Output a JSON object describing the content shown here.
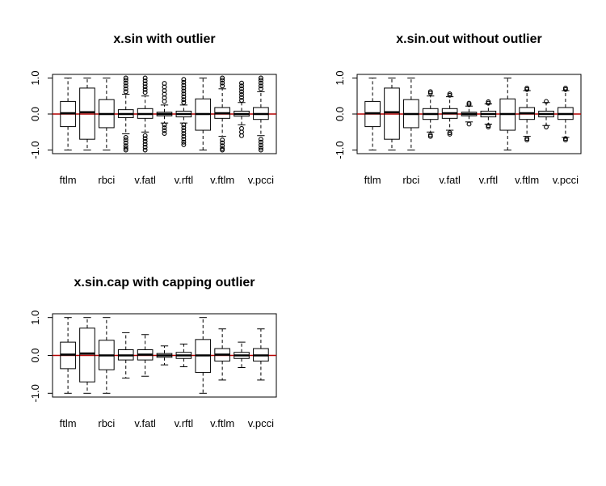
{
  "colors": {
    "background": "#ffffff",
    "axis": "#000000",
    "zero_line": "#b30000",
    "median": "#000000"
  },
  "chart_data": [
    {
      "type": "boxplot",
      "title": "x.sin with outlier",
      "ylim": [
        -1.1,
        1.1
      ],
      "yticks": [
        "-1.0",
        "0.0",
        "1.0"
      ],
      "ytick_values": [
        -1.0,
        0.0,
        1.0
      ],
      "xtick_labels": [
        "ftlm",
        "rbci",
        "v.fatl",
        "v.rftl",
        "v.ftlm",
        "v.pcci"
      ],
      "xtick_positions": [
        1,
        3,
        5,
        7,
        9,
        11
      ],
      "reference_line": 0,
      "boxes": [
        {
          "whisker_low": -1.0,
          "q1": -0.35,
          "median": 0.02,
          "q3": 0.35,
          "whisker_high": 1.0,
          "outliers": []
        },
        {
          "whisker_low": -1.0,
          "q1": -0.7,
          "median": 0.05,
          "q3": 0.72,
          "whisker_high": 1.0,
          "outliers": []
        },
        {
          "whisker_low": -1.0,
          "q1": -0.38,
          "median": 0.0,
          "q3": 0.4,
          "whisker_high": 1.0,
          "outliers": []
        },
        {
          "whisker_low": -0.55,
          "q1": -0.1,
          "median": 0.0,
          "q3": 0.12,
          "whisker_high": 0.55,
          "outliers": [
            -0.65,
            -0.72,
            -0.8,
            -0.88,
            -0.95,
            -1.0,
            0.62,
            0.7,
            0.78,
            0.86,
            0.94,
            1.0
          ]
        },
        {
          "whisker_low": -0.5,
          "q1": -0.12,
          "median": 0.0,
          "q3": 0.15,
          "whisker_high": 0.5,
          "outliers": [
            -0.6,
            -0.68,
            -0.76,
            -0.84,
            -0.92,
            -1.0,
            0.6,
            0.68,
            0.76,
            0.84,
            0.92,
            1.0
          ]
        },
        {
          "whisker_low": -0.25,
          "q1": -0.05,
          "median": 0.0,
          "q3": 0.05,
          "whisker_high": 0.25,
          "outliers": [
            -0.3,
            -0.38,
            -0.46,
            -0.54,
            0.35,
            0.45,
            0.55,
            0.65,
            0.75,
            0.85
          ]
        },
        {
          "whisker_low": -0.25,
          "q1": -0.08,
          "median": 0.0,
          "q3": 0.08,
          "whisker_high": 0.25,
          "outliers": [
            -0.3,
            -0.38,
            -0.46,
            -0.54,
            -0.62,
            -0.7,
            -0.78,
            -0.85,
            0.32,
            0.4,
            0.48,
            0.56,
            0.64,
            0.72,
            0.8,
            0.88,
            0.96
          ]
        },
        {
          "whisker_low": -1.0,
          "q1": -0.45,
          "median": 0.0,
          "q3": 0.42,
          "whisker_high": 1.0,
          "outliers": []
        },
        {
          "whisker_low": -0.62,
          "q1": -0.12,
          "median": 0.02,
          "q3": 0.18,
          "whisker_high": 0.7,
          "outliers": [
            -0.72,
            -0.8,
            -0.88,
            -0.96,
            -1.0,
            0.78,
            0.86,
            0.94,
            1.0
          ]
        },
        {
          "whisker_low": -0.3,
          "q1": -0.06,
          "median": 0.0,
          "q3": 0.08,
          "whisker_high": 0.32,
          "outliers": [
            -0.4,
            -0.5,
            -0.6,
            0.38,
            0.46,
            0.54,
            0.62,
            0.7,
            0.78,
            0.86
          ]
        },
        {
          "whisker_low": -0.6,
          "q1": -0.15,
          "median": 0.0,
          "q3": 0.18,
          "whisker_high": 0.62,
          "outliers": [
            -0.7,
            -0.78,
            -0.86,
            -0.94,
            -1.0,
            0.7,
            0.78,
            0.86,
            0.94,
            1.0
          ]
        }
      ]
    },
    {
      "type": "boxplot",
      "title": "x.sin.out without outlier",
      "ylim": [
        -1.1,
        1.1
      ],
      "yticks": [
        "-1.0",
        "0.0",
        "1.0"
      ],
      "ytick_values": [
        -1.0,
        0.0,
        1.0
      ],
      "xtick_labels": [
        "ftlm",
        "rbci",
        "v.fatl",
        "v.rftl",
        "v.ftlm",
        "v.pcci"
      ],
      "xtick_positions": [
        1,
        3,
        5,
        7,
        9,
        11
      ],
      "reference_line": 0,
      "boxes": [
        {
          "whisker_low": -1.0,
          "q1": -0.35,
          "median": 0.02,
          "q3": 0.35,
          "whisker_high": 1.0,
          "outliers": []
        },
        {
          "whisker_low": -1.0,
          "q1": -0.7,
          "median": 0.05,
          "q3": 0.72,
          "whisker_high": 1.0,
          "outliers": []
        },
        {
          "whisker_low": -1.0,
          "q1": -0.38,
          "median": 0.0,
          "q3": 0.4,
          "whisker_high": 1.0,
          "outliers": []
        },
        {
          "whisker_low": -0.5,
          "q1": -0.15,
          "median": 0.0,
          "q3": 0.15,
          "whisker_high": 0.5,
          "outliers": [
            -0.58,
            -0.62,
            0.58,
            0.62
          ]
        },
        {
          "whisker_low": -0.45,
          "q1": -0.12,
          "median": 0.02,
          "q3": 0.15,
          "whisker_high": 0.48,
          "outliers": [
            -0.52,
            -0.56,
            0.52,
            0.56
          ]
        },
        {
          "whisker_low": -0.22,
          "q1": -0.05,
          "median": 0.0,
          "q3": 0.05,
          "whisker_high": 0.22,
          "outliers": [
            -0.28,
            0.26,
            0.3
          ]
        },
        {
          "whisker_low": -0.28,
          "q1": -0.08,
          "median": 0.0,
          "q3": 0.08,
          "whisker_high": 0.28,
          "outliers": [
            -0.32,
            -0.36,
            0.3,
            0.34
          ]
        },
        {
          "whisker_low": -1.0,
          "q1": -0.45,
          "median": 0.0,
          "q3": 0.42,
          "whisker_high": 1.0,
          "outliers": []
        },
        {
          "whisker_low": -0.62,
          "q1": -0.15,
          "median": 0.02,
          "q3": 0.18,
          "whisker_high": 0.65,
          "outliers": [
            -0.68,
            -0.72,
            0.68,
            0.72
          ]
        },
        {
          "whisker_low": -0.32,
          "q1": -0.08,
          "median": 0.0,
          "q3": 0.08,
          "whisker_high": 0.32,
          "outliers": [
            -0.36,
            0.35
          ]
        },
        {
          "whisker_low": -0.65,
          "q1": -0.15,
          "median": 0.0,
          "q3": 0.18,
          "whisker_high": 0.65,
          "outliers": [
            -0.68,
            -0.72,
            0.68,
            0.72
          ]
        }
      ]
    },
    {
      "type": "boxplot",
      "title": "x.sin.cap with capping outlier",
      "ylim": [
        -1.1,
        1.1
      ],
      "yticks": [
        "-1.0",
        "0.0",
        "1.0"
      ],
      "ytick_values": [
        -1.0,
        0.0,
        1.0
      ],
      "xtick_labels": [
        "ftlm",
        "rbci",
        "v.fatl",
        "v.rftl",
        "v.ftlm",
        "v.pcci"
      ],
      "xtick_positions": [
        1,
        3,
        5,
        7,
        9,
        11
      ],
      "reference_line": 0,
      "boxes": [
        {
          "whisker_low": -1.0,
          "q1": -0.35,
          "median": 0.02,
          "q3": 0.35,
          "whisker_high": 1.0,
          "outliers": []
        },
        {
          "whisker_low": -1.0,
          "q1": -0.7,
          "median": 0.05,
          "q3": 0.72,
          "whisker_high": 1.0,
          "outliers": []
        },
        {
          "whisker_low": -1.0,
          "q1": -0.38,
          "median": 0.0,
          "q3": 0.4,
          "whisker_high": 1.0,
          "outliers": []
        },
        {
          "whisker_low": -0.6,
          "q1": -0.12,
          "median": 0.0,
          "q3": 0.15,
          "whisker_high": 0.6,
          "outliers": []
        },
        {
          "whisker_low": -0.55,
          "q1": -0.12,
          "median": 0.02,
          "q3": 0.15,
          "whisker_high": 0.55,
          "outliers": []
        },
        {
          "whisker_low": -0.25,
          "q1": -0.05,
          "median": 0.0,
          "q3": 0.05,
          "whisker_high": 0.25,
          "outliers": []
        },
        {
          "whisker_low": -0.3,
          "q1": -0.08,
          "median": 0.0,
          "q3": 0.08,
          "whisker_high": 0.3,
          "outliers": []
        },
        {
          "whisker_low": -1.0,
          "q1": -0.45,
          "median": 0.0,
          "q3": 0.42,
          "whisker_high": 1.0,
          "outliers": []
        },
        {
          "whisker_low": -0.65,
          "q1": -0.15,
          "median": 0.02,
          "q3": 0.18,
          "whisker_high": 0.7,
          "outliers": []
        },
        {
          "whisker_low": -0.32,
          "q1": -0.08,
          "median": 0.0,
          "q3": 0.08,
          "whisker_high": 0.35,
          "outliers": []
        },
        {
          "whisker_low": -0.65,
          "q1": -0.15,
          "median": 0.0,
          "q3": 0.18,
          "whisker_high": 0.7,
          "outliers": []
        }
      ]
    }
  ]
}
